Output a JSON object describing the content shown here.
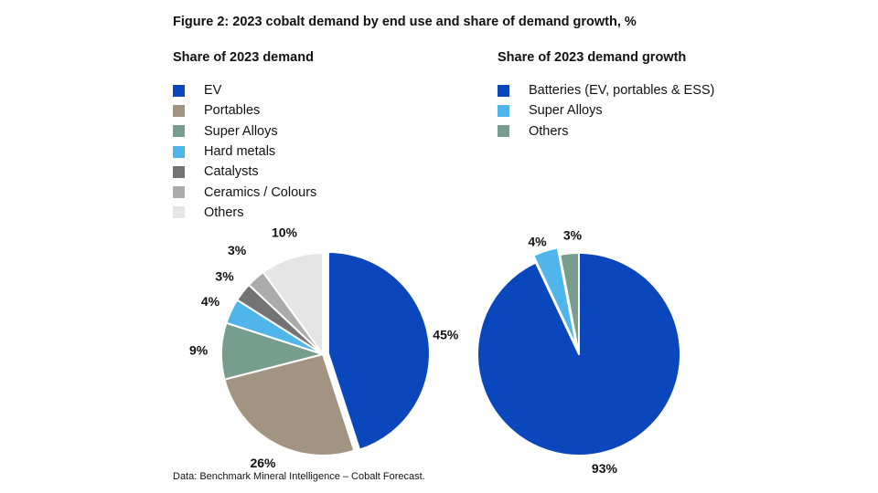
{
  "figure_title": "Figure 2: 2023 cobalt demand by end use and share of demand growth, %",
  "source": "Data: Benchmark Mineral Intelligence – Cobalt Forecast.",
  "chart_data": [
    {
      "type": "pie",
      "title": "Share of 2023 demand",
      "legend_position": "top-left",
      "slices": [
        {
          "label": "EV",
          "value": 45,
          "value_label": "45%",
          "color": "#0a47bc",
          "exploded": true
        },
        {
          "label": "Portables",
          "value": 26,
          "value_label": "26%",
          "color": "#a39381",
          "exploded": false
        },
        {
          "label": "Super Alloys",
          "value": 9,
          "value_label": "9%",
          "color": "#779d8f",
          "exploded": false
        },
        {
          "label": "Hard metals",
          "value": 4,
          "value_label": "4%",
          "color": "#4fb5ea",
          "exploded": false
        },
        {
          "label": "Catalysts",
          "value": 3,
          "value_label": "3%",
          "color": "#737373",
          "exploded": false
        },
        {
          "label": "Ceramics / Colours",
          "value": 3,
          "value_label": "3%",
          "color": "#ababab",
          "exploded": false
        },
        {
          "label": "Others",
          "value": 10,
          "value_label": "10%",
          "color": "#e5e5e5",
          "exploded": false
        }
      ]
    },
    {
      "type": "pie",
      "title": "Share of 2023 demand growth",
      "legend_position": "top-left",
      "slices": [
        {
          "label": "Batteries (EV, portables & ESS)",
          "value": 93,
          "value_label": "93%",
          "color": "#0a47bc",
          "exploded": false
        },
        {
          "label": "Super Alloys",
          "value": 4,
          "value_label": "4%",
          "color": "#4fb5ea",
          "exploded": true
        },
        {
          "label": "Others",
          "value": 3,
          "value_label": "3%",
          "color": "#779d8f",
          "exploded": false
        }
      ]
    }
  ]
}
